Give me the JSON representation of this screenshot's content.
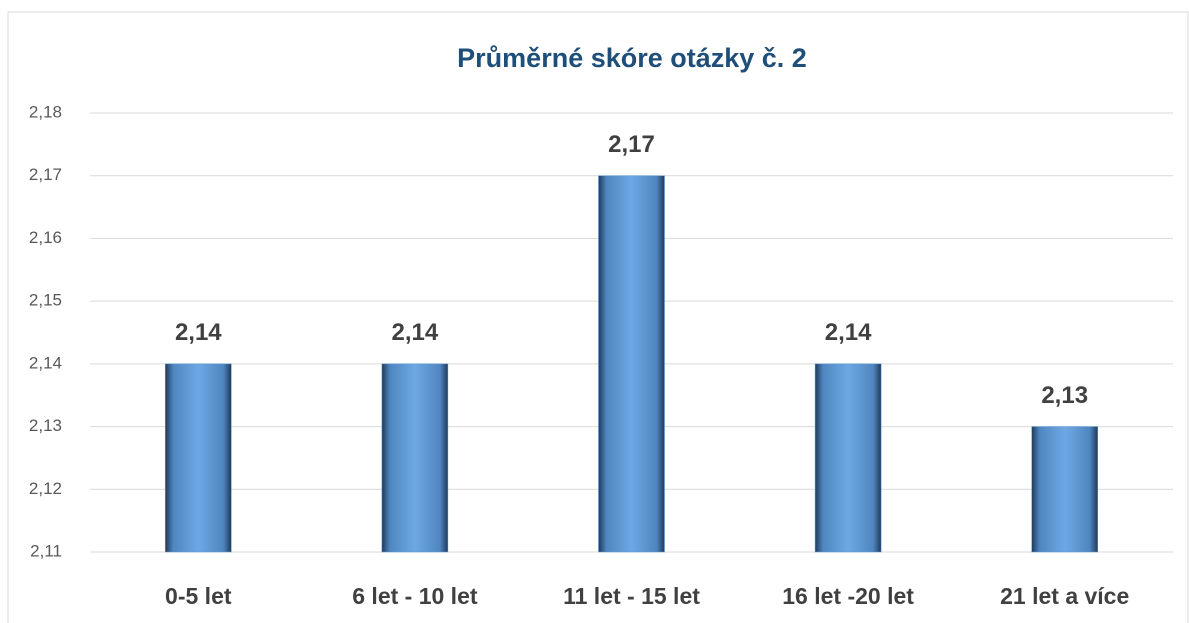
{
  "chart_data": {
    "type": "bar",
    "title": "Průměrné skóre otázky č. 2",
    "categories": [
      "0-5 let",
      "6 let - 10 let",
      "11 let - 15 let",
      "16 let -20 let",
      "21 let a více"
    ],
    "values": [
      2.14,
      2.14,
      2.17,
      2.14,
      2.13
    ],
    "value_labels": [
      "2,14",
      "2,14",
      "2,17",
      "2,14",
      "2,13"
    ],
    "color": "#5b9bd5",
    "ylim": [
      2.11,
      2.18
    ],
    "yticks": [
      {
        "value": 2.11,
        "label": "2,11"
      },
      {
        "value": 2.12,
        "label": "2,12"
      },
      {
        "value": 2.13,
        "label": "2,13"
      },
      {
        "value": 2.14,
        "label": "2,14"
      },
      {
        "value": 2.15,
        "label": "2,15"
      },
      {
        "value": 2.16,
        "label": "2,16"
      },
      {
        "value": 2.17,
        "label": "2,17"
      },
      {
        "value": 2.18,
        "label": "2,18"
      }
    ],
    "grid": true
  }
}
